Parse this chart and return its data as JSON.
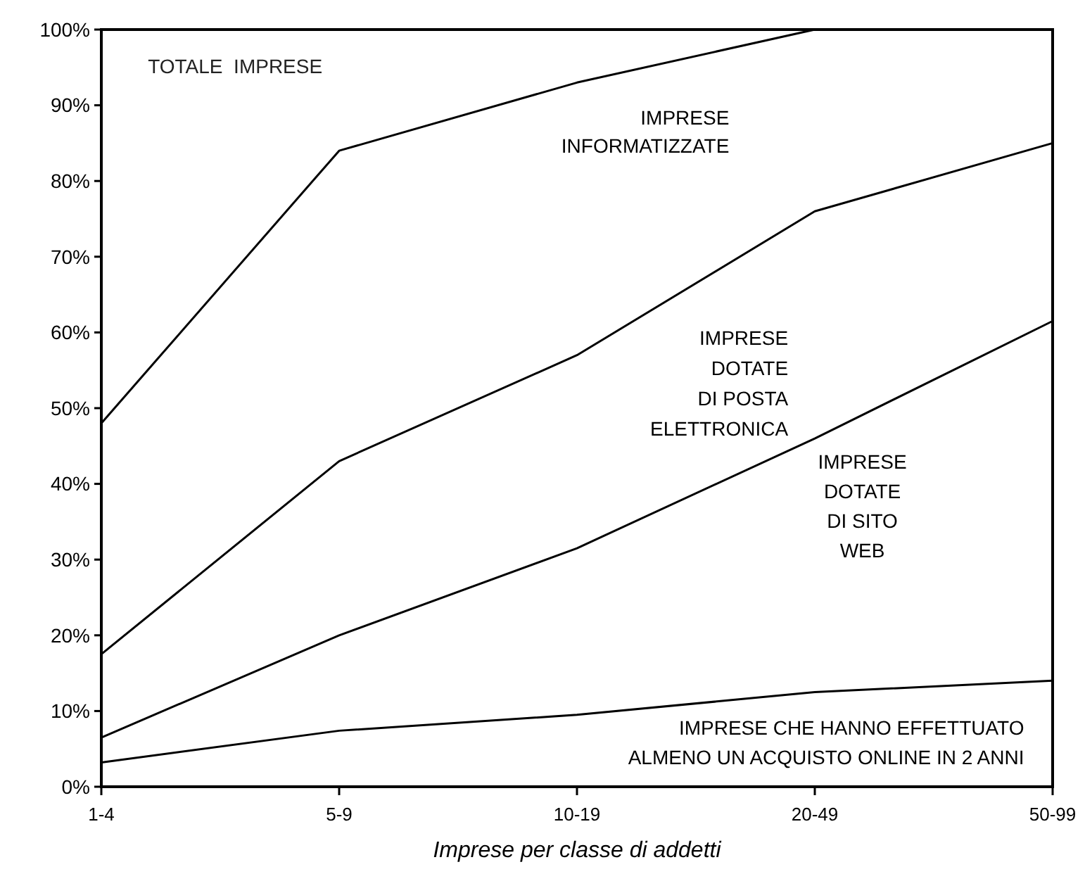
{
  "chart_data": {
    "type": "line",
    "xlabel": "Imprese per classe di addetti",
    "annotations": [
      "TOTALE  IMPRESE"
    ],
    "categories": [
      "1-4",
      "5-9",
      "10-19",
      "20-49",
      "50-99"
    ],
    "ylim": [
      0,
      100
    ],
    "yticks": [
      {
        "value": 0,
        "label": "0%"
      },
      {
        "value": 10,
        "label": "10%"
      },
      {
        "value": 20,
        "label": "20%"
      },
      {
        "value": 30,
        "label": "30%"
      },
      {
        "value": 40,
        "label": "40%"
      },
      {
        "value": 50,
        "label": "50%"
      },
      {
        "value": 60,
        "label": "60%"
      },
      {
        "value": 70,
        "label": "70%"
      },
      {
        "value": 80,
        "label": "80%"
      },
      {
        "value": 90,
        "label": "90%"
      },
      {
        "value": 100,
        "label": "100%"
      }
    ],
    "grid": false,
    "legend": false,
    "marker": "none",
    "line_style": "solid",
    "series": [
      {
        "name": "IMPRESE\nINFORMATIZZATE",
        "color": "#000000",
        "values": [
          48,
          84,
          93,
          100,
          null
        ]
      },
      {
        "name": "IMPRESE\nDOTATE\nDI POSTA\nELETTRONICA",
        "color": "#000000",
        "values": [
          17.5,
          43,
          57,
          76,
          85
        ]
      },
      {
        "name": "IMPRESE\nDOTATE\nDI SITO\nWEB",
        "color": "#000000",
        "values": [
          6.5,
          20,
          31.5,
          46,
          61.5
        ]
      },
      {
        "name": "IMPRESE CHE HANNO  EFFETTUATO\nALMENO UN ACQUISTO ONLINE IN 2 ANNI",
        "color": "#000000",
        "values": [
          3.2,
          7.4,
          9.5,
          12.5,
          14
        ]
      }
    ]
  }
}
